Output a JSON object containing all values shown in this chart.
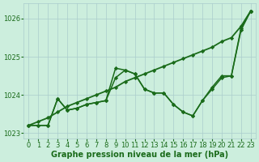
{
  "xlabel": "Graphe pression niveau de la mer (hPa)",
  "x": [
    0,
    1,
    2,
    3,
    4,
    5,
    6,
    7,
    8,
    9,
    10,
    11,
    12,
    13,
    14,
    15,
    16,
    17,
    18,
    19,
    20,
    21,
    22,
    23
  ],
  "line_straight": [
    1023.2,
    1023.3,
    1023.4,
    1023.55,
    1023.7,
    1023.8,
    1023.9,
    1024.0,
    1024.1,
    1024.2,
    1024.35,
    1024.45,
    1024.55,
    1024.65,
    1024.75,
    1024.85,
    1024.95,
    1025.05,
    1025.15,
    1025.25,
    1025.4,
    1025.5,
    1025.8,
    1026.2
  ],
  "line_high": [
    1023.2,
    1023.2,
    1023.2,
    1023.9,
    1023.6,
    1023.65,
    1023.75,
    1023.8,
    1023.85,
    1024.7,
    1024.65,
    1024.55,
    1024.15,
    1024.05,
    1024.05,
    1023.75,
    1023.55,
    1023.45,
    1023.85,
    1024.2,
    1024.5,
    1024.5,
    1025.75,
    1026.2
  ],
  "line_low": [
    1023.2,
    1023.2,
    1023.2,
    1023.9,
    1023.6,
    1023.65,
    1023.75,
    1023.8,
    1023.85,
    1024.45,
    1024.65,
    1024.55,
    1024.15,
    1024.05,
    1024.05,
    1023.75,
    1023.55,
    1023.45,
    1023.85,
    1024.15,
    1024.45,
    1024.5,
    1025.7,
    1026.2
  ],
  "line_color": "#1a6b1a",
  "bg_color": "#cceedd",
  "grid_color": "#aacccc",
  "ylim": [
    1022.85,
    1026.4
  ],
  "yticks": [
    1023,
    1024,
    1025,
    1026
  ],
  "xticks": [
    0,
    1,
    2,
    3,
    4,
    5,
    6,
    7,
    8,
    9,
    10,
    11,
    12,
    13,
    14,
    15,
    16,
    17,
    18,
    19,
    20,
    21,
    22,
    23
  ],
  "marker": "D",
  "marker_size": 2.2,
  "lw_straight": 1.3,
  "lw_jagged": 1.1,
  "xlabel_fontsize": 7,
  "tick_fontsize": 6,
  "text_color": "#1a6b1a"
}
